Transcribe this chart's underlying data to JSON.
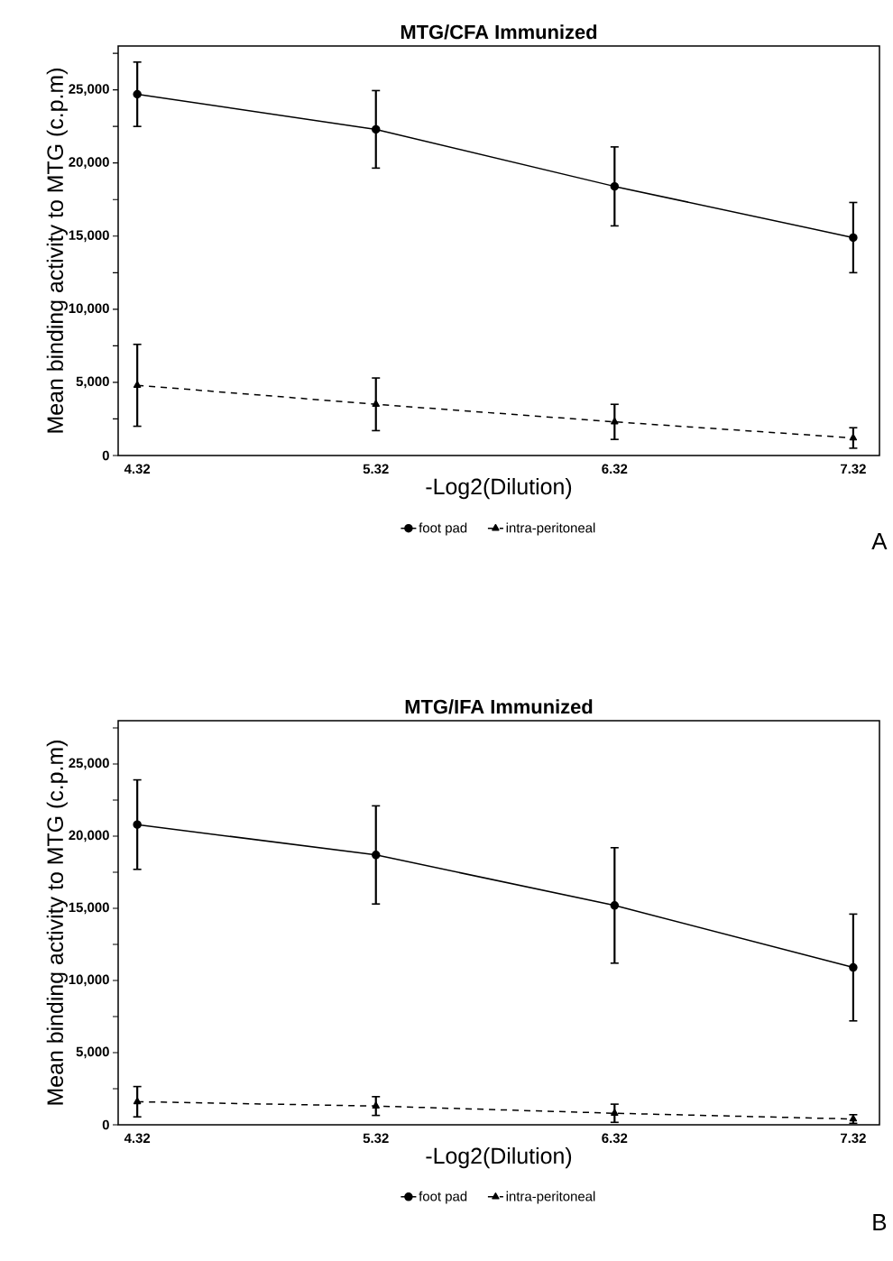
{
  "chart_data": [
    {
      "type": "line",
      "title": "MTG/CFA Immunized",
      "xlabel": "-Log2(Dilution)",
      "ylabel": "Mean binding activity to MTG (c.p.m)",
      "x": [
        4.32,
        5.32,
        6.32,
        7.32
      ],
      "xlim": [
        4.24,
        7.43
      ],
      "ylim": [
        0,
        28000
      ],
      "xticks": [
        4.32,
        5.32,
        6.32,
        7.32
      ],
      "yticks": [
        {
          "value": 0,
          "label": "0"
        },
        {
          "value": 2500,
          "label": null
        },
        {
          "value": 5000,
          "label": "5,000"
        },
        {
          "value": 7500,
          "label": null
        },
        {
          "value": 10000,
          "label": "10,000"
        },
        {
          "value": 12500,
          "label": null
        },
        {
          "value": 15000,
          "label": "15,000"
        },
        {
          "value": 17500,
          "label": null
        },
        {
          "value": 20000,
          "label": "20,000"
        },
        {
          "value": 22500,
          "label": null
        },
        {
          "value": 25000,
          "label": "25,000"
        },
        {
          "value": 27500,
          "label": null
        }
      ],
      "legend": "bottom",
      "annotations": [
        "A"
      ],
      "series": [
        {
          "name": "foot pad",
          "color": "#000000",
          "marker": "circle",
          "line_style": "solid",
          "values": [
            24700,
            22300,
            18400,
            14900
          ],
          "errors": [
            2200,
            2650,
            2700,
            2400
          ]
        },
        {
          "name": "intra-peritoneal",
          "color": "#000000",
          "marker": "triangle",
          "line_style": "dashed",
          "values": [
            4800,
            3500,
            2300,
            1200
          ],
          "errors": [
            2800,
            1800,
            1200,
            700
          ]
        }
      ]
    },
    {
      "type": "line",
      "title": "MTG/IFA Immunized",
      "xlabel": "-Log2(Dilution)",
      "ylabel": "Mean binding activity to MTG (c.p.m)",
      "x": [
        4.32,
        5.32,
        6.32,
        7.32
      ],
      "xlim": [
        4.24,
        7.43
      ],
      "ylim": [
        0,
        28000
      ],
      "xticks": [
        4.32,
        5.32,
        6.32,
        7.32
      ],
      "yticks": [
        {
          "value": 0,
          "label": "0"
        },
        {
          "value": 2500,
          "label": null
        },
        {
          "value": 5000,
          "label": "5,000"
        },
        {
          "value": 7500,
          "label": null
        },
        {
          "value": 10000,
          "label": "10,000"
        },
        {
          "value": 12500,
          "label": null
        },
        {
          "value": 15000,
          "label": "15,000"
        },
        {
          "value": 17500,
          "label": null
        },
        {
          "value": 20000,
          "label": "20,000"
        },
        {
          "value": 22500,
          "label": null
        },
        {
          "value": 25000,
          "label": "25,000"
        },
        {
          "value": 27500,
          "label": null
        }
      ],
      "legend": "bottom",
      "annotations": [
        "B"
      ],
      "series": [
        {
          "name": "foot pad",
          "color": "#000000",
          "marker": "circle",
          "line_style": "solid",
          "values": [
            20800,
            18700,
            15200,
            10900
          ],
          "errors": [
            3100,
            3400,
            4000,
            3700
          ]
        },
        {
          "name": "intra-peritoneal",
          "color": "#000000",
          "marker": "triangle",
          "line_style": "dashed",
          "values": [
            1600,
            1300,
            800,
            400
          ],
          "errors": [
            1050,
            650,
            630,
            300
          ]
        }
      ]
    }
  ]
}
